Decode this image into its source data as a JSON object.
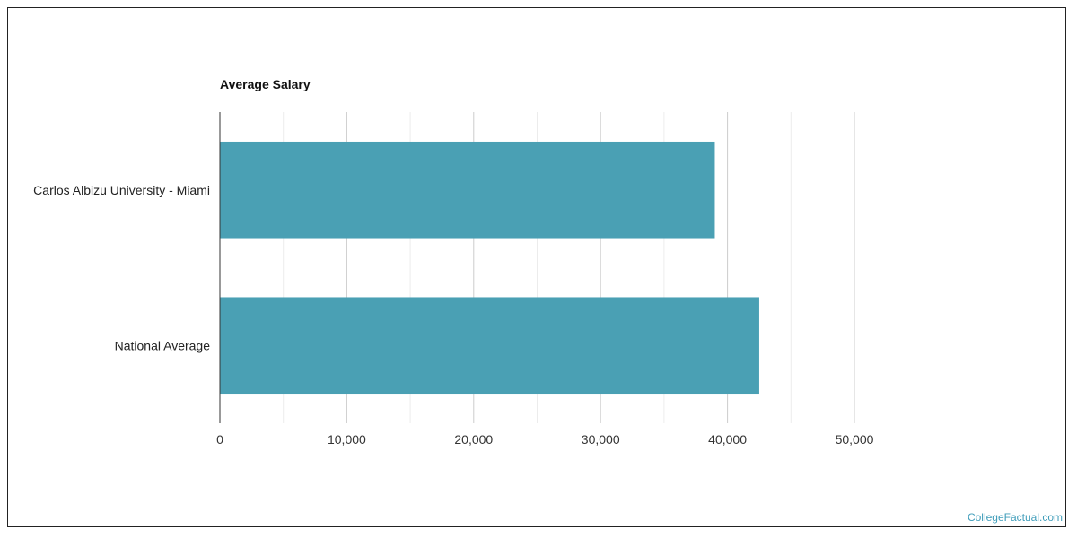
{
  "chart_data": {
    "type": "bar",
    "orientation": "horizontal",
    "title": "Average Salary",
    "xlabel": "",
    "ylabel": "",
    "categories": [
      "Carlos Albizu University - Miami",
      "National Average"
    ],
    "values": [
      39000,
      42500
    ],
    "xlim": [
      0,
      50000
    ],
    "ticks": [
      0,
      10000,
      20000,
      30000,
      40000,
      50000
    ],
    "tick_labels": [
      "0",
      "10,000",
      "20,000",
      "30,000",
      "40,000",
      "50,000"
    ],
    "grid": true,
    "legend": "none",
    "bar_color": "#4aa0b4",
    "grid_color": "#d9d9d9"
  },
  "watermark": "CollegeFactual.com"
}
